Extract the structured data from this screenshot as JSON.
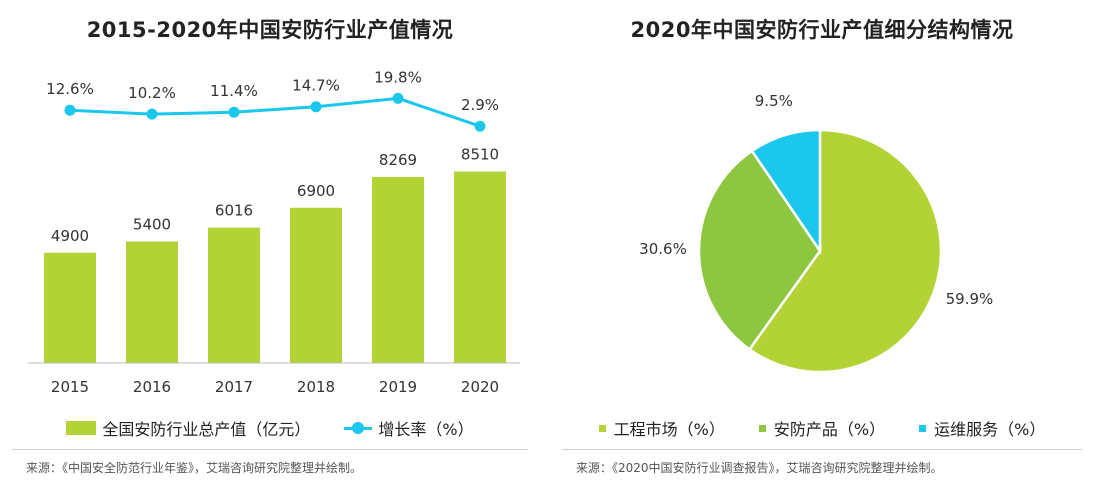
{
  "chart_data": [
    {
      "type": "bar",
      "title": "2015-2020年中国安防行业产值情况",
      "categories": [
        "2015",
        "2016",
        "2017",
        "2018",
        "2019",
        "2020"
      ],
      "series": [
        {
          "name": "全国安防行业总产值（亿元）",
          "values": [
            4900,
            5400,
            6016,
            6900,
            8269,
            8510
          ],
          "color": "#b2d235"
        },
        {
          "name": "增长率（%）",
          "type": "line",
          "values": [
            12.6,
            10.2,
            11.4,
            14.7,
            19.8,
            2.9
          ],
          "labels": [
            "12.6%",
            "10.2%",
            "11.4%",
            "14.7%",
            "19.8%",
            "2.9%"
          ],
          "color": "#1cc7ee"
        }
      ],
      "legend": "bottom",
      "grid": false
    },
    {
      "type": "pie",
      "title": "2020年中国安防行业产值细分结构情况",
      "slices": [
        {
          "name": "工程市场（%）",
          "value": 59.9,
          "label": "59.9%",
          "color": "#b2d235"
        },
        {
          "name": "安防产品（%）",
          "value": 30.6,
          "label": "30.6%",
          "color": "#8dc63f"
        },
        {
          "name": "运维服务（%）",
          "value": 9.5,
          "label": "9.5%",
          "color": "#1cc7ee"
        }
      ],
      "legend": "bottom"
    }
  ],
  "sources": {
    "left": "来源：《中国安全防范行业年鉴》，艾瑞咨询研究院整理并绘制。",
    "right": "来源：《2020中国安防行业调查报告》，艾瑞咨询研究院整理并绘制。"
  }
}
